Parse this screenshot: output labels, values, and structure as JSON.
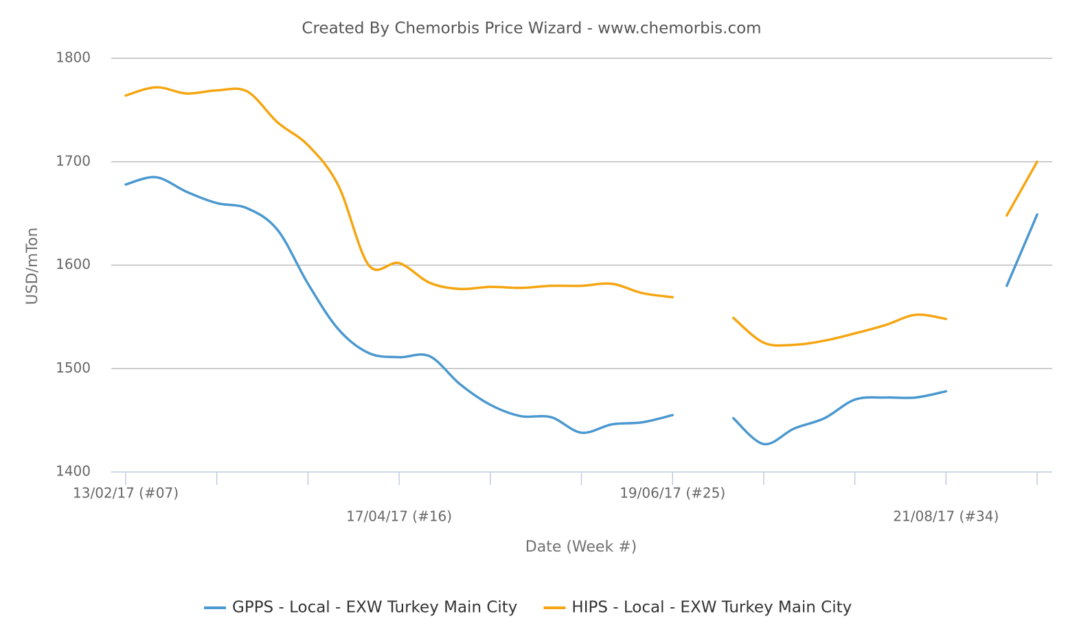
{
  "chart_data": {
    "type": "line",
    "title": "Created By Chemorbis Price Wizard - www.chemorbis.com",
    "x_label": "Date (Week #)",
    "y_label": "USD/mTon",
    "categories": [
      "13/02/17 (#07)",
      null,
      null,
      null,
      null,
      null,
      null,
      null,
      null,
      "17/04/17 (#16)",
      null,
      null,
      null,
      null,
      null,
      null,
      null,
      null,
      "19/06/17 (#25)",
      null,
      null,
      null,
      null,
      null,
      null,
      null,
      null,
      "21/08/17 (#34)",
      null,
      null,
      null
    ],
    "series": [
      {
        "name": "GPPS - Local - EXW Turkey Main City",
        "color": "#4a98cf",
        "values": [
          1678,
          1685,
          1671,
          1660,
          1655,
          1634,
          1582,
          1538,
          1515,
          1511,
          1512,
          1485,
          1465,
          1454,
          1453,
          1438,
          1446,
          1448,
          1455,
          null,
          1452,
          1427,
          1442,
          1452,
          1470,
          1472,
          1472,
          1478,
          null,
          1580,
          1649
        ]
      },
      {
        "name": "HIPS - Local - EXW Turkey Main City",
        "color": "#f5a511",
        "values": [
          1764,
          1772,
          1766,
          1769,
          1768,
          1738,
          1716,
          1677,
          1600,
          1602,
          1583,
          1577,
          1579,
          1578,
          1580,
          1580,
          1582,
          1573,
          1569,
          null,
          1549,
          1525,
          1523,
          1527,
          1534,
          1542,
          1552,
          1548,
          null,
          1648,
          1700
        ]
      }
    ],
    "ylim": [
      1400,
      1800
    ],
    "yticks": [
      1400,
      1500,
      1600,
      1700,
      1800
    ],
    "grid": true,
    "legend": "bottom"
  }
}
